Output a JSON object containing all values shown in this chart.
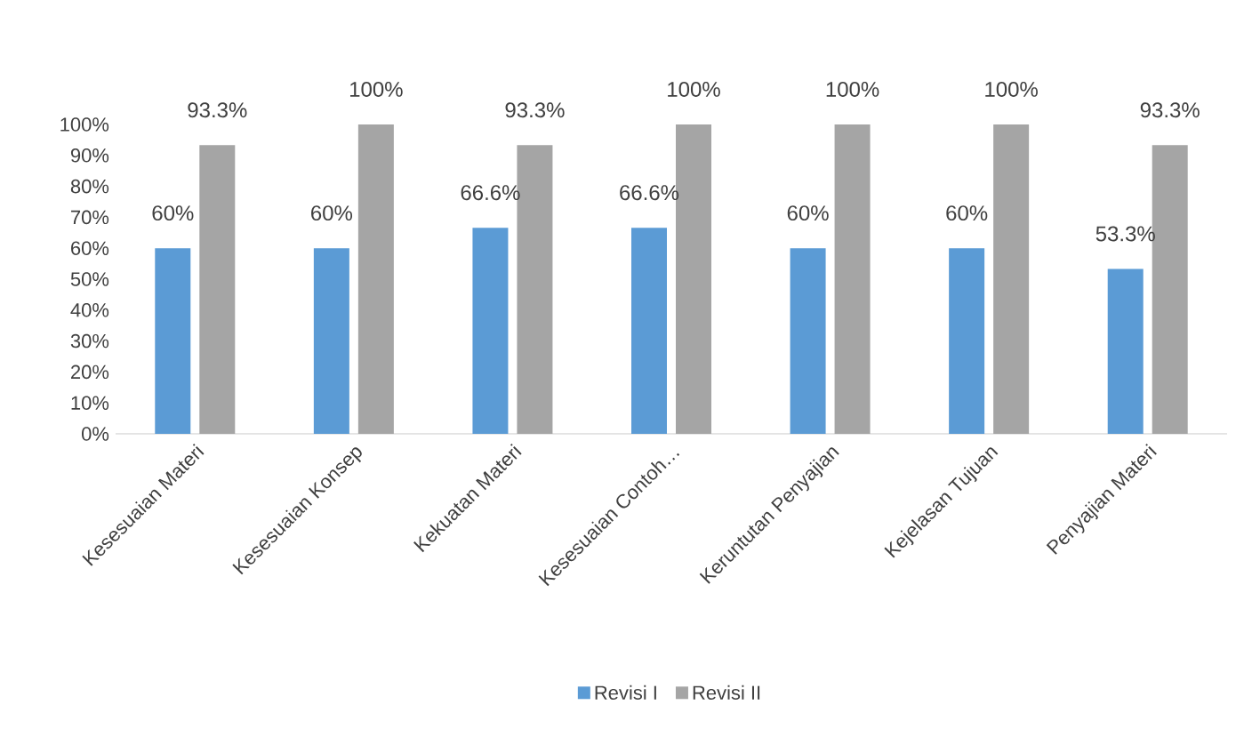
{
  "chart_data": {
    "type": "bar",
    "categories": [
      "Kesesuaian Materi",
      "Kesesuaian Konsep",
      "Kekuatan Materi",
      "Kesesuaian Contoh…",
      "Keruntutan Penyajian",
      "Kejelasan Tujuan",
      "Penyajian Materi"
    ],
    "series": [
      {
        "name": "Revisi I",
        "color": "#5b9bd5",
        "values": [
          60,
          60,
          66.6,
          66.6,
          60,
          60,
          53.3
        ],
        "value_labels": [
          "60%",
          "60%",
          "66.6%",
          "66.6%",
          "60%",
          "60%",
          "53.3%"
        ]
      },
      {
        "name": "Revisi II",
        "color": "#a5a5a5",
        "values": [
          93.3,
          100,
          93.3,
          100,
          100,
          100,
          93.3
        ],
        "value_labels": [
          "93.3%",
          "100%",
          "93.3%",
          "100%",
          "100%",
          "100%",
          "93.3%"
        ]
      }
    ],
    "ylim": [
      0,
      100
    ],
    "yticks": [
      {
        "value": 0,
        "label": "0%"
      },
      {
        "value": 10,
        "label": "10%"
      },
      {
        "value": 20,
        "label": "20%"
      },
      {
        "value": 30,
        "label": "30%"
      },
      {
        "value": 40,
        "label": "40%"
      },
      {
        "value": 50,
        "label": "50%"
      },
      {
        "value": 60,
        "label": "60%"
      },
      {
        "value": 70,
        "label": "70%"
      },
      {
        "value": 80,
        "label": "80%"
      },
      {
        "value": 90,
        "label": "90%"
      },
      {
        "value": 100,
        "label": "100%"
      }
    ],
    "legend": "bottom",
    "grid": false
  }
}
